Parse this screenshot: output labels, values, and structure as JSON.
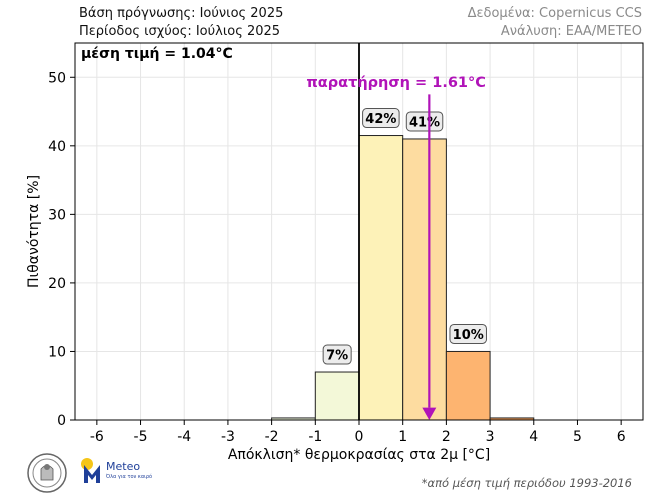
{
  "header": {
    "forecast_base": "Βάση πρόγνωσης: Ιούνιος 2025",
    "validity_period": "Περίοδος ισχύος: Ιούλιος 2025",
    "data_source": "Δεδομένα: Copernicus CCS",
    "analysis": "Ανάλυση: ΕΑΑ/METEO"
  },
  "logos": {
    "meteo_name": "Meteo",
    "meteo_tagline": "Όλα για τον καιρό"
  },
  "footnote": "*από μέση τιμή περιόδου 1993-2016",
  "chart_data": {
    "type": "bar",
    "xlabel": "Απόκλιση* θερμοκρασίας στα 2μ [°C]",
    "ylabel": "Πιθανότητα [%]",
    "xlim": [
      -6.5,
      6.5
    ],
    "ylim": [
      0,
      55
    ],
    "xticks": [
      -6,
      -5,
      -4,
      -3,
      -2,
      -1,
      0,
      1,
      2,
      3,
      4,
      5,
      6
    ],
    "yticks": [
      0,
      10,
      20,
      30,
      40,
      50
    ],
    "bins": [
      {
        "from": -2,
        "to": -1,
        "value": 0.3,
        "label": "",
        "color": "#ecf5d9"
      },
      {
        "from": -1,
        "to": 0,
        "value": 7,
        "label": "7%",
        "color": "#f3f8d8"
      },
      {
        "from": 0,
        "to": 1,
        "value": 41.5,
        "label": "42%",
        "color": "#fdf2b8"
      },
      {
        "from": 1,
        "to": 2,
        "value": 41,
        "label": "41%",
        "color": "#fddca0"
      },
      {
        "from": 2,
        "to": 3,
        "value": 10,
        "label": "10%",
        "color": "#fdb470"
      },
      {
        "from": 3,
        "to": 4,
        "value": 0.3,
        "label": "",
        "color": "#f6a05a"
      }
    ],
    "mean_annotation": "μέση τιμή = 1.04°C",
    "observation": {
      "value": 1.61,
      "label": "παρατήρηση = 1.61°C",
      "color": "#b013b8"
    },
    "zero_line": 0
  }
}
